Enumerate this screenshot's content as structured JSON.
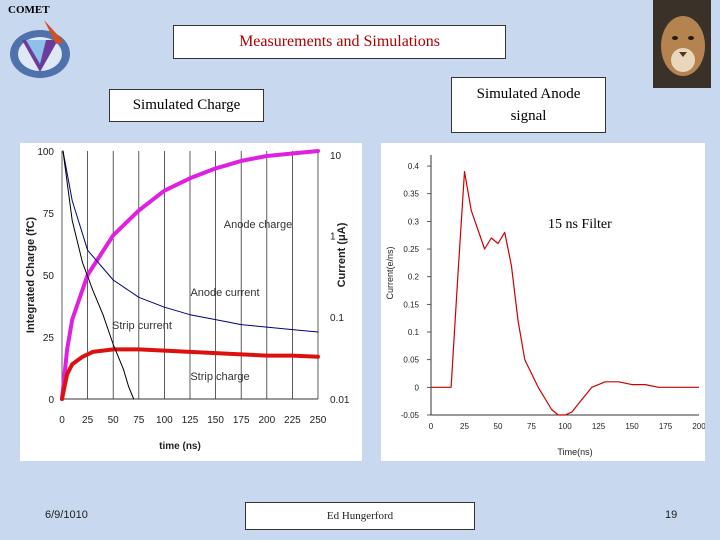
{
  "logo": {
    "text": "COMET",
    "icon": "comet-logo-icon"
  },
  "mascot": {
    "icon": "cougar-photo"
  },
  "header": {
    "title": "Measurements and Simulations"
  },
  "labels": {
    "left": "Simulated Charge",
    "right_line1": "Simulated Anode",
    "right_line2": "signal",
    "filter": "15 ns Filter"
  },
  "footer": {
    "date": "6/9/1010",
    "author": "Ed Hungerford",
    "page": "19"
  },
  "chart_data": [
    {
      "type": "line",
      "xlabel": "time (ns)",
      "ylabel": "Integrated Charge (fC)",
      "y2label": "Current (μA)",
      "x_ticks": [
        "0",
        "25",
        "50",
        "75",
        "100",
        "125",
        "150",
        "175",
        "200",
        "225",
        "250"
      ],
      "y_ticks": [
        "0",
        "25",
        "50",
        "75",
        "100"
      ],
      "y2_ticks": [
        "0.01",
        "0.1",
        "1",
        "10"
      ],
      "xlim": [
        0,
        250
      ],
      "ylim": [
        0,
        100
      ],
      "y2_scale": "log",
      "grid": "vertical",
      "annotations": [
        "Anode charge",
        "Anode current",
        "Strip current",
        "Strip charge"
      ],
      "series": [
        {
          "name": "Anode charge",
          "color": "#e020e0",
          "x": [
            0,
            5,
            10,
            25,
            50,
            75,
            100,
            125,
            150,
            175,
            200,
            225,
            250
          ],
          "y": [
            0,
            20,
            32,
            50,
            66,
            76,
            84,
            89,
            93,
            96,
            98,
            99,
            100
          ]
        },
        {
          "name": "Strip charge",
          "color": "#dd1010",
          "x": [
            0,
            5,
            10,
            20,
            30,
            50,
            75,
            100,
            125,
            150,
            175,
            200,
            225,
            250
          ],
          "y": [
            0,
            10,
            14,
            17,
            19,
            20,
            20,
            19.5,
            19,
            18.5,
            18,
            17.5,
            17.5,
            17
          ]
        },
        {
          "name": "Anode current",
          "color": "#000080",
          "x": [
            1,
            10,
            25,
            50,
            75,
            100,
            125,
            150,
            175,
            200,
            225,
            250
          ],
          "y": [
            100,
            80,
            60,
            48,
            41,
            37,
            34,
            32,
            30,
            29,
            28,
            27
          ]
        },
        {
          "name": "Strip current",
          "color": "#000000",
          "x": [
            1,
            10,
            20,
            30,
            40,
            50,
            60,
            65,
            70
          ],
          "y": [
            100,
            72,
            55,
            44,
            34,
            22,
            12,
            5,
            0
          ]
        }
      ]
    },
    {
      "type": "line",
      "xlabel": "Time(ns)",
      "ylabel": "Current(e/ns)",
      "x_ticks": [
        "0",
        "25",
        "50",
        "75",
        "100",
        "125",
        "150",
        "175",
        "200"
      ],
      "y_ticks": [
        "-0.05",
        "0",
        "0.05",
        "0.1",
        "0.15",
        "0.2",
        "0.25",
        "0.3",
        "0.35",
        "0.4"
      ],
      "xlim": [
        0,
        200
      ],
      "ylim": [
        -0.05,
        0.42
      ],
      "series": [
        {
          "name": "Anode signal",
          "color": "#cc0000",
          "x": [
            0,
            5,
            10,
            15,
            20,
            25,
            30,
            35,
            40,
            45,
            50,
            55,
            60,
            65,
            70,
            80,
            90,
            95,
            100,
            105,
            110,
            120,
            130,
            140,
            150,
            160,
            170,
            180,
            190,
            200
          ],
          "y": [
            0,
            0,
            0,
            0,
            0.2,
            0.39,
            0.32,
            0.285,
            0.25,
            0.27,
            0.26,
            0.28,
            0.22,
            0.12,
            0.05,
            0.0,
            -0.04,
            -0.05,
            -0.05,
            -0.045,
            -0.03,
            0.0,
            0.01,
            0.01,
            0.005,
            0.005,
            0.0,
            0.0,
            0.0,
            0.0
          ]
        }
      ]
    }
  ]
}
